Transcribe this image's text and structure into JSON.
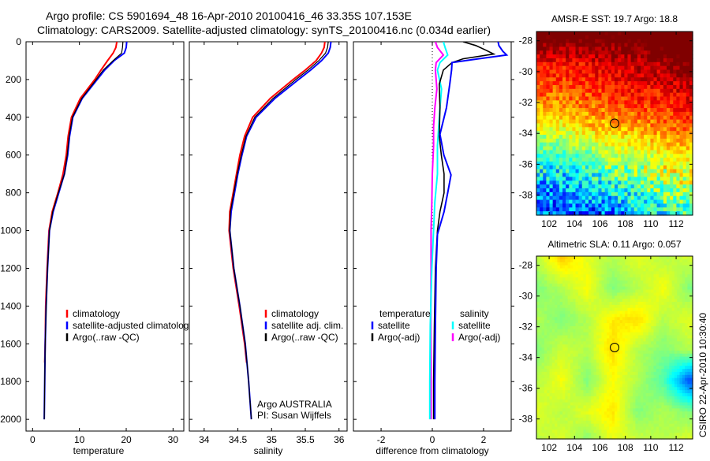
{
  "title_line1": "Argo profile: CS 5901694_48 16-Apr-2010 20100416_46 33.35S 107.153E",
  "title_line2": "Climatology: CARS2009. Satellite-adjusted climatology: synTS_20100416.nc (0.034d earlier)",
  "side_label": "CSIRO 22-Apr-2010 10:30:40",
  "annotation": {
    "line1": "Argo AUSTRALIA",
    "line2": "PI: Susan Wijffels"
  },
  "chart_data": [
    {
      "type": "line",
      "name": "temperature-profile",
      "xlabel": "temperature",
      "ylim": [
        0,
        2062
      ],
      "yticks": [
        0,
        200,
        400,
        600,
        800,
        1000,
        1200,
        1400,
        1600,
        1800,
        2000
      ],
      "xlim": [
        -1.4,
        32.3
      ],
      "xticks": [
        0,
        10,
        20,
        30
      ],
      "legend": [
        {
          "label": "climatology",
          "color": "#ff0000"
        },
        {
          "label": "satellite-adjusted climatology",
          "color": "#0000ff"
        },
        {
          "label": "Argo(..raw -QC)",
          "color": "#000000"
        }
      ],
      "series": [
        {
          "name": "climatology",
          "color": "#ff0000",
          "width": 2,
          "depth": [
            0,
            30,
            60,
            100,
            150,
            200,
            300,
            400,
            500,
            600,
            700,
            800,
            900,
            1000,
            1200,
            1400,
            1600,
            1700
          ],
          "values": [
            18.0,
            17.8,
            17.2,
            16.0,
            14.6,
            13.3,
            10.2,
            8.3,
            7.6,
            7.2,
            6.5,
            5.4,
            4.2,
            3.5,
            3.1,
            2.8,
            2.7,
            2.6
          ]
        },
        {
          "name": "satellite-adjusted climatology",
          "color": "#0000ff",
          "width": 2,
          "depth": [
            0,
            30,
            60,
            100,
            150,
            200,
            300,
            400,
            500,
            600,
            700,
            800,
            900,
            1000,
            1200,
            1400,
            1600,
            1800,
            2000
          ],
          "values": [
            20.1,
            20.0,
            19.6,
            17.4,
            15.4,
            13.8,
            10.6,
            8.6,
            7.9,
            7.5,
            6.8,
            5.6,
            4.4,
            3.6,
            3.2,
            2.9,
            2.7,
            2.6,
            2.5
          ]
        },
        {
          "name": "Argo(..raw -QC)",
          "color": "#000000",
          "width": 1.2,
          "depth": [
            0,
            30,
            60,
            100,
            150,
            200,
            300,
            400,
            500,
            600,
            700,
            800,
            900,
            1000,
            1200,
            1400,
            1600,
            1800,
            2000
          ],
          "values": [
            19.3,
            19.2,
            19.0,
            17.2,
            15.1,
            13.6,
            10.5,
            8.5,
            7.8,
            7.4,
            6.8,
            5.5,
            4.3,
            3.6,
            3.2,
            2.9,
            2.7,
            2.6,
            2.5
          ]
        }
      ]
    },
    {
      "type": "line",
      "name": "salinity-profile",
      "xlabel": "salinity",
      "xlim": [
        33.78,
        36.12
      ],
      "xticks": [
        34,
        34.5,
        35,
        35.5,
        36
      ],
      "xticklabels": [
        "34",
        "34.5",
        "35",
        "35.5",
        "36"
      ],
      "legend": [
        {
          "label": "climatology",
          "color": "#ff0000"
        },
        {
          "label": "satellite adj. clim.",
          "color": "#0000ff"
        },
        {
          "label": "Argo(..raw -QC)",
          "color": "#000000"
        }
      ],
      "series": [
        {
          "name": "climatology",
          "color": "#ff0000",
          "width": 2,
          "depth": [
            0,
            30,
            60,
            100,
            150,
            200,
            300,
            400,
            500,
            600,
            700,
            800,
            900,
            1000,
            1200,
            1400,
            1600,
            1700
          ],
          "values": [
            35.79,
            35.78,
            35.74,
            35.66,
            35.5,
            35.32,
            34.98,
            34.72,
            34.6,
            34.53,
            34.48,
            34.43,
            34.38,
            34.37,
            34.43,
            34.52,
            34.6,
            34.63
          ]
        },
        {
          "name": "satellite adj. clim.",
          "color": "#0000ff",
          "width": 2,
          "depth": [
            0,
            30,
            60,
            100,
            150,
            200,
            300,
            400,
            500,
            600,
            700,
            800,
            900,
            1000,
            1200,
            1400,
            1600,
            1800,
            2000
          ],
          "values": [
            35.88,
            35.87,
            35.84,
            35.74,
            35.58,
            35.4,
            35.05,
            34.77,
            34.63,
            34.56,
            34.5,
            34.45,
            34.4,
            34.38,
            34.44,
            34.53,
            34.61,
            34.66,
            34.7
          ]
        },
        {
          "name": "Argo(..raw -QC)",
          "color": "#000000",
          "width": 1.2,
          "depth": [
            0,
            30,
            60,
            100,
            150,
            200,
            300,
            400,
            500,
            600,
            700,
            800,
            900,
            1000,
            1200,
            1400,
            1600,
            1800,
            2000
          ],
          "values": [
            35.84,
            35.83,
            35.8,
            35.7,
            35.54,
            35.36,
            35.02,
            34.75,
            34.62,
            34.55,
            34.49,
            34.44,
            34.39,
            34.38,
            34.44,
            34.53,
            34.61,
            34.66,
            34.7
          ]
        }
      ]
    },
    {
      "type": "line",
      "name": "difference-profile",
      "xlabel": "difference from climatology",
      "xlim": [
        -3.08,
        3.08
      ],
      "xticks": [
        -2,
        0,
        2
      ],
      "legend_temperature": {
        "title": "temperature",
        "items": [
          {
            "label": "satellite",
            "color": "#0000ff"
          },
          {
            "label": "Argo(-adj)",
            "color": "#000000"
          }
        ]
      },
      "legend_salinity": {
        "title": "salinity",
        "items": [
          {
            "label": "satellite",
            "color": "#00ffff"
          },
          {
            "label": "Argo(-adj)",
            "color": "#ff00ff"
          }
        ]
      },
      "series": [
        {
          "name": "salinity Argo(-adj)",
          "color": "#ff00ff",
          "width": 2,
          "depth": [
            0,
            30,
            70,
            110,
            150,
            250,
            350,
            450,
            550,
            700,
            850,
            1000,
            1200,
            1500,
            1800,
            2000
          ],
          "values": [
            0.12,
            0.2,
            0.43,
            0.15,
            0.12,
            0.18,
            0.1,
            0.05,
            0.05,
            0.0,
            -0.02,
            -0.05,
            -0.05,
            -0.06,
            -0.05,
            -0.05
          ]
        },
        {
          "name": "salinity satellite",
          "color": "#00ffff",
          "width": 2,
          "depth": [
            0,
            30,
            70,
            110,
            150,
            250,
            350,
            450,
            550,
            700,
            850,
            1000,
            1200,
            1500,
            1800,
            2000
          ],
          "values": [
            0.43,
            0.5,
            0.6,
            0.3,
            0.2,
            0.36,
            0.3,
            0.25,
            0.2,
            0.2,
            0.1,
            0.05,
            -0.02,
            -0.08,
            -0.1,
            -0.1
          ]
        },
        {
          "name": "temperature Argo(-adj)",
          "color": "#000000",
          "width": 1.6,
          "depth": [
            0,
            20,
            45,
            65,
            90,
            110,
            150,
            225,
            350,
            500,
            600,
            700,
            800,
            900,
            1000,
            1200,
            1500,
            1800,
            2000
          ],
          "values": [
            1.2,
            1.7,
            2.1,
            2.4,
            1.2,
            0.77,
            0.43,
            0.27,
            0.3,
            0.27,
            0.35,
            0.46,
            0.46,
            0.3,
            0.2,
            0.12,
            0.08,
            0.05,
            0.05
          ]
        },
        {
          "name": "temperature satellite",
          "color": "#0000ff",
          "width": 2,
          "depth": [
            0,
            20,
            50,
            70,
            90,
            110,
            150,
            225,
            350,
            490,
            600,
            705,
            800,
            900,
            1020,
            1200,
            1500,
            1800,
            2000
          ],
          "values": [
            2.57,
            2.6,
            2.75,
            2.9,
            1.8,
            0.77,
            0.75,
            0.68,
            0.55,
            0.3,
            0.45,
            0.73,
            0.6,
            0.46,
            0.2,
            0.15,
            0.12,
            0.1,
            0.1
          ]
        }
      ]
    },
    {
      "type": "heatmap",
      "name": "sst-map",
      "title": "AMSR-E SST: 19.7 Argo: 18.8",
      "xlim": [
        101,
        113.3
      ],
      "ylim": [
        -39.3,
        -27.4
      ],
      "xticks": [
        102,
        104,
        106,
        108,
        110,
        112
      ],
      "yticks": [
        -28,
        -30,
        -32,
        -34,
        -36,
        -38
      ],
      "clim": [
        15,
        21
      ],
      "grid_lon": [
        101,
        103,
        105,
        107,
        109,
        111,
        113
      ],
      "grid_lat": [
        -27.5,
        -29.5,
        -31.5,
        -33.5,
        -35.5,
        -37.5,
        -39.5
      ],
      "values": [
        [
          21.5,
          21.5,
          21.5,
          21.3,
          21.5,
          21.8,
          22.0
        ],
        [
          20.3,
          20.2,
          20.3,
          20.5,
          20.6,
          20.8,
          21.2
        ],
        [
          19.7,
          19.6,
          19.8,
          20.0,
          20.2,
          20.1,
          20.5
        ],
        [
          18.6,
          18.8,
          19.1,
          19.2,
          19.3,
          19.6,
          19.8
        ],
        [
          17.6,
          17.6,
          17.8,
          18.4,
          18.3,
          18.6,
          18.8
        ],
        [
          16.6,
          16.8,
          17.1,
          17.3,
          17.6,
          18.2,
          18.5
        ],
        [
          16.2,
          16.2,
          15.9,
          16.2,
          16.8,
          17.1,
          17.3
        ]
      ],
      "marker": {
        "lon": 107.153,
        "lat": -33.35
      }
    },
    {
      "type": "heatmap",
      "name": "sla-map",
      "title": "Altimetric SLA: 0.11 Argo: 0.057",
      "xlim": [
        101,
        113.3
      ],
      "ylim": [
        -39.3,
        -27.4
      ],
      "xticks": [
        102,
        104,
        106,
        108,
        110,
        112
      ],
      "yticks": [
        -28,
        -30,
        -32,
        -34,
        -36,
        -38
      ],
      "clim": [
        -0.5,
        0.5
      ],
      "grid_lon": [
        101,
        103,
        105,
        107,
        109,
        111,
        113
      ],
      "grid_lat": [
        -27.5,
        -29.5,
        -31.5,
        -33.5,
        -35.5,
        -37.5,
        -39.5
      ],
      "values": [
        [
          0.05,
          0.18,
          0.1,
          0.05,
          0.1,
          0.05,
          0.08
        ],
        [
          0.0,
          0.05,
          0.12,
          0.0,
          0.05,
          0.12,
          0.0
        ],
        [
          0.05,
          0.0,
          0.05,
          0.14,
          0.16,
          0.05,
          0.1
        ],
        [
          0.0,
          0.08,
          0.05,
          0.16,
          0.05,
          0.0,
          0.05
        ],
        [
          0.05,
          0.12,
          0.0,
          0.12,
          0.05,
          -0.05,
          -0.3
        ],
        [
          0.1,
          0.05,
          0.1,
          0.15,
          0.0,
          0.05,
          0.0
        ],
        [
          0.05,
          0.1,
          0.0,
          0.1,
          0.08,
          0.05,
          0.1
        ]
      ],
      "marker": {
        "lon": 107.153,
        "lat": -33.35
      }
    }
  ]
}
